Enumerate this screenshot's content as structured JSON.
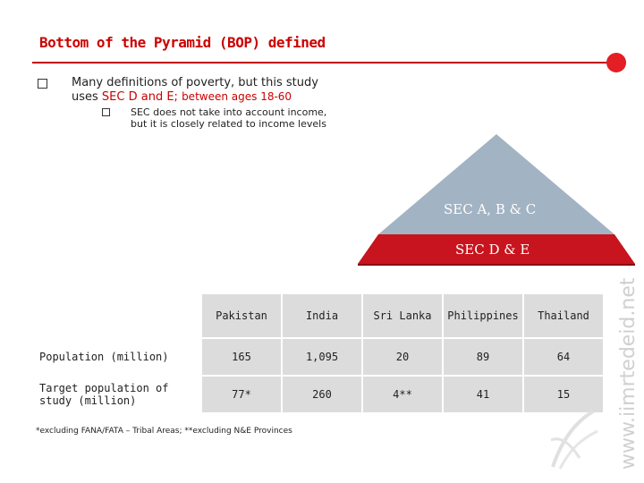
{
  "slide": {
    "title": "Bottom of the Pyramid (BOP) defined",
    "bullet_main_line1": "Many definitions of poverty, but this study",
    "bullet_main_line2_prefix": "uses ",
    "bullet_main_line2_highlight": "SEC D and E; ",
    "bullet_main_line2_suffix": "between ages 18-60",
    "sub_bullet_line1": "SEC does not take into account income,",
    "sub_bullet_line2": "but it is closely related to income levels",
    "accent_color": "#cc0000",
    "dot_color": "#e31e24"
  },
  "pyramid": {
    "top_label": "SEC A, B & C",
    "bottom_label": "SEC D & E",
    "top_color": "#a2b3c3",
    "bottom_color": "#c8141e"
  },
  "table": {
    "columns": [
      "Pakistan",
      "India",
      "Sri Lanka",
      "Philippines",
      "Thailand"
    ],
    "rows": [
      {
        "label": "Population (million)",
        "values": [
          "165",
          "1,095",
          "20",
          "89",
          "64"
        ]
      },
      {
        "label_line1": "Target population of",
        "label_line2": "study (million)",
        "values": [
          "77*",
          "260",
          "4**",
          "41",
          "15"
        ]
      }
    ],
    "cell_color": "#dcdcdc"
  },
  "footnote": "*excluding FANA/FATA – Tribal Areas; **excluding N&E Provinces",
  "watermark": "www.iimrtedeid.net"
}
